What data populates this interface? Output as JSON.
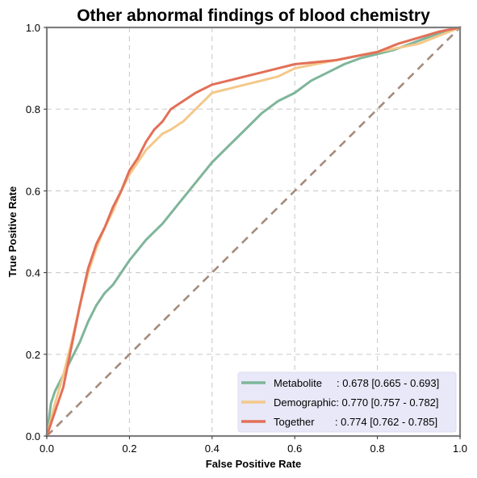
{
  "chart_data": {
    "type": "line",
    "title": "Other abnormal findings of blood chemistry",
    "xlabel": "False Positive Rate",
    "ylabel": "True Positive Rate",
    "xlim": [
      0,
      1
    ],
    "ylim": [
      0,
      1
    ],
    "xticks": [
      "0.0",
      "0.2",
      "0.4",
      "0.6",
      "0.8",
      "1.0"
    ],
    "yticks": [
      "0.0",
      "0.2",
      "0.4",
      "0.6",
      "0.8",
      "1.0"
    ],
    "grid": true,
    "legend_position": "bottom-right",
    "series": [
      {
        "name": "Metabolite     : 0.678 [0.665 - 0.693]",
        "color": "#7fb59a",
        "x": [
          0,
          0.01,
          0.02,
          0.04,
          0.06,
          0.08,
          0.1,
          0.12,
          0.14,
          0.16,
          0.18,
          0.2,
          0.24,
          0.28,
          0.32,
          0.36,
          0.4,
          0.44,
          0.48,
          0.52,
          0.56,
          0.6,
          0.64,
          0.68,
          0.72,
          0.76,
          0.8,
          0.84,
          0.88,
          0.92,
          0.96,
          1.0
        ],
        "y": [
          0,
          0.08,
          0.11,
          0.15,
          0.19,
          0.23,
          0.28,
          0.32,
          0.35,
          0.37,
          0.4,
          0.43,
          0.48,
          0.52,
          0.57,
          0.62,
          0.67,
          0.71,
          0.75,
          0.79,
          0.82,
          0.84,
          0.87,
          0.89,
          0.91,
          0.925,
          0.935,
          0.945,
          0.96,
          0.975,
          0.99,
          1.0
        ]
      },
      {
        "name": "Demographic: 0.770 [0.757 - 0.782]",
        "color": "#f3c88a",
        "x": [
          0,
          0.01,
          0.02,
          0.04,
          0.06,
          0.08,
          0.1,
          0.12,
          0.14,
          0.16,
          0.18,
          0.2,
          0.22,
          0.24,
          0.26,
          0.28,
          0.3,
          0.33,
          0.36,
          0.4,
          0.44,
          0.48,
          0.52,
          0.56,
          0.6,
          0.65,
          0.7,
          0.75,
          0.8,
          0.85,
          0.9,
          0.95,
          1.0
        ],
        "y": [
          0,
          0.04,
          0.08,
          0.15,
          0.23,
          0.32,
          0.4,
          0.46,
          0.51,
          0.55,
          0.6,
          0.64,
          0.67,
          0.7,
          0.72,
          0.74,
          0.75,
          0.77,
          0.8,
          0.84,
          0.85,
          0.86,
          0.87,
          0.88,
          0.9,
          0.91,
          0.92,
          0.93,
          0.94,
          0.95,
          0.96,
          0.98,
          1.0
        ]
      },
      {
        "name": "Together       : 0.774 [0.762 - 0.785]",
        "color": "#e27058",
        "x": [
          0,
          0.01,
          0.02,
          0.04,
          0.06,
          0.08,
          0.1,
          0.12,
          0.14,
          0.16,
          0.18,
          0.2,
          0.22,
          0.24,
          0.26,
          0.28,
          0.3,
          0.33,
          0.36,
          0.4,
          0.44,
          0.48,
          0.52,
          0.56,
          0.6,
          0.65,
          0.7,
          0.75,
          0.8,
          0.85,
          0.9,
          0.95,
          1.0
        ],
        "y": [
          0,
          0.03,
          0.06,
          0.12,
          0.22,
          0.32,
          0.41,
          0.47,
          0.51,
          0.56,
          0.6,
          0.65,
          0.68,
          0.72,
          0.75,
          0.77,
          0.8,
          0.82,
          0.84,
          0.86,
          0.87,
          0.88,
          0.89,
          0.9,
          0.91,
          0.915,
          0.92,
          0.93,
          0.94,
          0.96,
          0.975,
          0.99,
          1.0
        ]
      }
    ],
    "reference_line": {
      "color": "#a58b7c",
      "x": [
        0,
        1
      ],
      "y": [
        0,
        1
      ]
    },
    "legend_background": "#e8e8f8"
  }
}
